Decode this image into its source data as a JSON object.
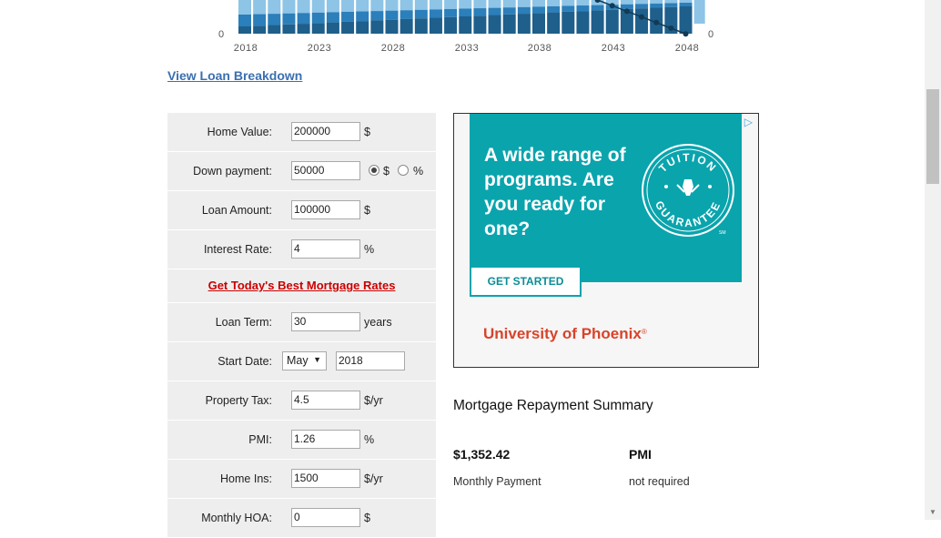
{
  "chart_data": {
    "type": "bar",
    "x_ticks": [
      "2018",
      "2023",
      "2028",
      "2033",
      "2038",
      "2043",
      "2048"
    ],
    "y_left_label": "0",
    "y_right_label": "0",
    "colors": {
      "light": "#8ec4e6",
      "medium": "#2b7fba",
      "dark": "#1f5f8b",
      "line": "#123a55"
    }
  },
  "breakdown_link": "View Loan Breakdown",
  "form": {
    "home_value": {
      "label": "Home Value:",
      "value": "200000",
      "unit": "$"
    },
    "down_payment": {
      "label": "Down payment:",
      "value": "50000",
      "opt_dollar": "$",
      "opt_percent": "%"
    },
    "loan_amount": {
      "label": "Loan Amount:",
      "value": "100000",
      "unit": "$"
    },
    "interest_rate": {
      "label": "Interest Rate:",
      "value": "4",
      "unit": "%"
    },
    "rates_link": "Get Today's Best Mortgage Rates",
    "loan_term": {
      "label": "Loan Term:",
      "value": "30",
      "unit": "years"
    },
    "start_date": {
      "label": "Start Date:",
      "month": "May",
      "year": "2018"
    },
    "property_tax": {
      "label": "Property Tax:",
      "value": "4.5",
      "unit": "$/yr"
    },
    "pmi": {
      "label": "PMI:",
      "value": "1.26",
      "unit": "%"
    },
    "home_ins": {
      "label": "Home Ins:",
      "value": "1500",
      "unit": "$/yr"
    },
    "monthly_hoa": {
      "label": "Monthly HOA:",
      "value": "0",
      "unit": "$"
    }
  },
  "ad": {
    "headline": "A wide range of programs. Are you ready for one?",
    "seal_top": "TUITION",
    "seal_bottom": "GUARANTEE",
    "seal_mark": "SM",
    "cta": "GET STARTED",
    "brand": "University of Phoenix",
    "brand_mark": "®",
    "choices_icon": "ad-choices-triangle-icon"
  },
  "summary": {
    "title": "Mortgage Repayment Summary",
    "monthly_payment_value": "$1,352.42",
    "monthly_payment_label": "Monthly Payment",
    "pmi_value": "PMI",
    "pmi_label": "not required"
  }
}
